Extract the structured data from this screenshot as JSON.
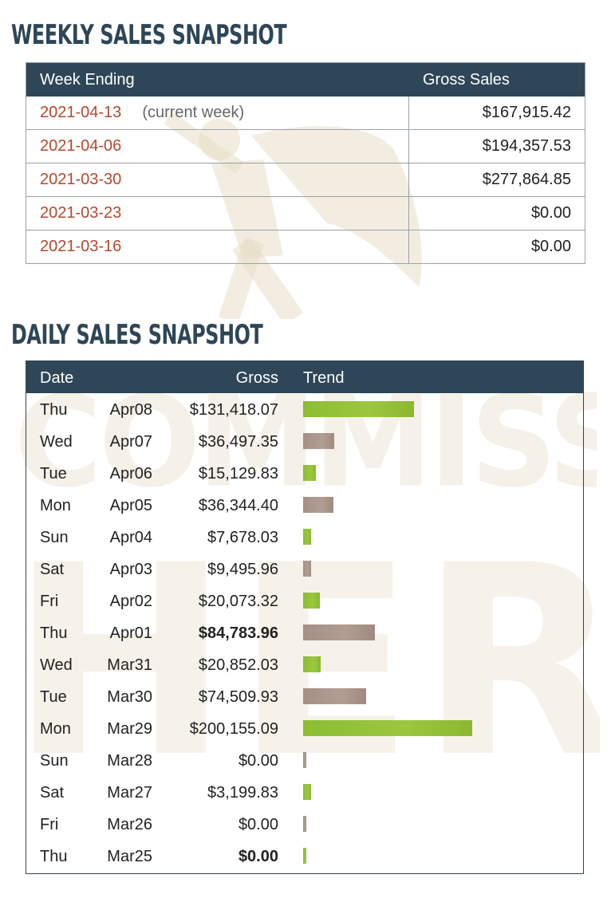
{
  "watermark": {
    "line1": "COMMISSION",
    "line2": "HERO"
  },
  "weekly": {
    "title": "WEEKLY SALES SNAPSHOT",
    "columns": [
      "Week Ending",
      "Gross Sales"
    ],
    "current_note": "(current week)",
    "rows": [
      {
        "week": "2021-04-13",
        "gross": "$167,915.42",
        "current": true
      },
      {
        "week": "2021-04-06",
        "gross": "$194,357.53",
        "current": false
      },
      {
        "week": "2021-03-30",
        "gross": "$277,864.85",
        "current": false
      },
      {
        "week": "2021-03-23",
        "gross": "$0.00",
        "current": false
      },
      {
        "week": "2021-03-16",
        "gross": "$0.00",
        "current": false
      }
    ]
  },
  "daily": {
    "title": "DAILY SALES SNAPSHOT",
    "columns": [
      "Date",
      "Gross",
      "Trend"
    ],
    "colors": {
      "green": "#93c238",
      "brown": "#a8958b"
    },
    "rows": [
      {
        "day": "Thu",
        "date": "Apr08",
        "gross": "$131,418.07",
        "amount": 131418.07,
        "bold": false,
        "bar_color": "green"
      },
      {
        "day": "Wed",
        "date": "Apr07",
        "gross": "$36,497.35",
        "amount": 36497.35,
        "bold": false,
        "bar_color": "brown"
      },
      {
        "day": "Tue",
        "date": "Apr06",
        "gross": "$15,129.83",
        "amount": 15129.83,
        "bold": false,
        "bar_color": "green"
      },
      {
        "day": "Mon",
        "date": "Apr05",
        "gross": "$36,344.40",
        "amount": 36344.4,
        "bold": false,
        "bar_color": "brown"
      },
      {
        "day": "Sun",
        "date": "Apr04",
        "gross": "$7,678.03",
        "amount": 7678.03,
        "bold": false,
        "bar_color": "green"
      },
      {
        "day": "Sat",
        "date": "Apr03",
        "gross": "$9,495.96",
        "amount": 9495.96,
        "bold": false,
        "bar_color": "brown"
      },
      {
        "day": "Fri",
        "date": "Apr02",
        "gross": "$20,073.32",
        "amount": 20073.32,
        "bold": false,
        "bar_color": "green"
      },
      {
        "day": "Thu",
        "date": "Apr01",
        "gross": "$84,783.96",
        "amount": 84783.96,
        "bold": true,
        "bar_color": "brown"
      },
      {
        "day": "Wed",
        "date": "Mar31",
        "gross": "$20,852.03",
        "amount": 20852.03,
        "bold": false,
        "bar_color": "green"
      },
      {
        "day": "Tue",
        "date": "Mar30",
        "gross": "$74,509.93",
        "amount": 74509.93,
        "bold": false,
        "bar_color": "brown"
      },
      {
        "day": "Mon",
        "date": "Mar29",
        "gross": "$200,155.09",
        "amount": 200155.09,
        "bold": false,
        "bar_color": "green"
      },
      {
        "day": "Sun",
        "date": "Mar28",
        "gross": "$0.00",
        "amount": 0,
        "bold": false,
        "bar_color": "brown"
      },
      {
        "day": "Sat",
        "date": "Mar27",
        "gross": "$3,199.83",
        "amount": 3199.83,
        "bold": false,
        "bar_color": "green"
      },
      {
        "day": "Fri",
        "date": "Mar26",
        "gross": "$0.00",
        "amount": 0,
        "bold": false,
        "bar_color": "brown"
      },
      {
        "day": "Thu",
        "date": "Mar25",
        "gross": "$0.00",
        "amount": 0,
        "bold": true,
        "bar_color": "green"
      }
    ]
  }
}
